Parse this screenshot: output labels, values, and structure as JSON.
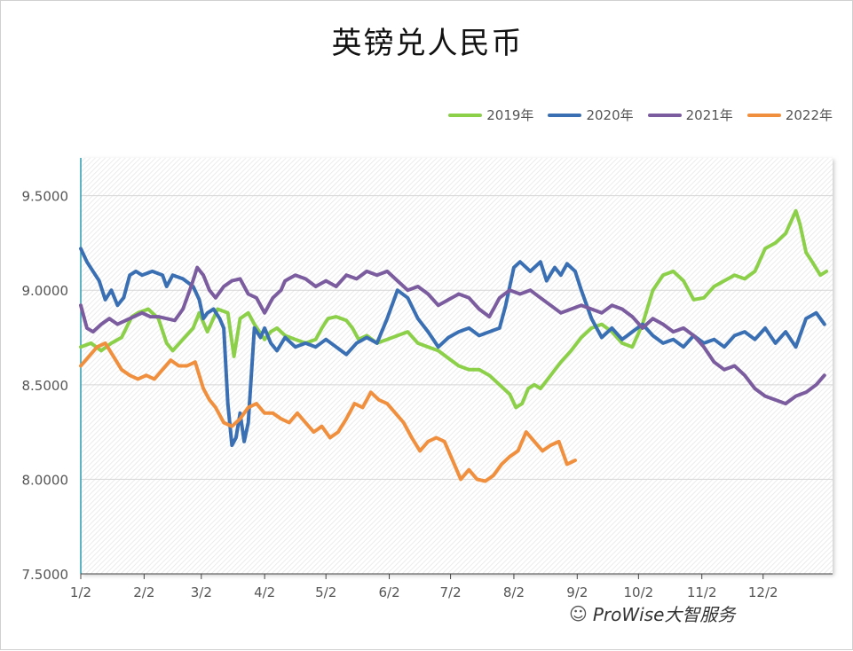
{
  "title": "英镑兑人民币",
  "watermark": {
    "text": "ProWise大智服务",
    "icon": "wechat-icon"
  },
  "chart_data": {
    "type": "line",
    "title": "英镑兑人民币",
    "xlabel": "",
    "ylabel": "",
    "ylim": [
      7.5,
      9.7
    ],
    "yticks": [
      "9.5000",
      "9.0000",
      "8.5000",
      "8.0000",
      "7.5000"
    ],
    "ytick_values": [
      9.5,
      9.0,
      8.5,
      8.0,
      7.5
    ],
    "xticks": [
      "1/2",
      "2/2",
      "3/2",
      "4/2",
      "5/2",
      "6/2",
      "7/2",
      "8/2",
      "9/2",
      "10/2",
      "11/2",
      "12/2"
    ],
    "xtick_days": [
      0,
      31,
      59,
      90,
      120,
      151,
      181,
      212,
      243,
      273,
      304,
      334
    ],
    "xlim": [
      0,
      368
    ],
    "grid": true,
    "legend_position": "top-right",
    "series": [
      {
        "name": "2019年",
        "color": "#8cd04a",
        "x": [
          0,
          5,
          10,
          15,
          20,
          25,
          28,
          33,
          38,
          42,
          45,
          50,
          55,
          58,
          62,
          67,
          72,
          75,
          78,
          82,
          85,
          90,
          93,
          96,
          100,
          105,
          110,
          115,
          118,
          121,
          125,
          130,
          133,
          136,
          140,
          145,
          150,
          155,
          160,
          165,
          170,
          175,
          180,
          185,
          190,
          195,
          200,
          205,
          210,
          213,
          216,
          219,
          222,
          225,
          230,
          235,
          240,
          245,
          250,
          255,
          260,
          265,
          270,
          275,
          280,
          285,
          290,
          295,
          300,
          305,
          310,
          315,
          320,
          325,
          330,
          335,
          340,
          345,
          350,
          352,
          355,
          358,
          362,
          365
        ],
        "y": [
          8.7,
          8.72,
          8.68,
          8.72,
          8.75,
          8.86,
          8.88,
          8.9,
          8.85,
          8.72,
          8.68,
          8.74,
          8.8,
          8.88,
          8.78,
          8.9,
          8.88,
          8.65,
          8.85,
          8.88,
          8.82,
          8.74,
          8.78,
          8.8,
          8.76,
          8.74,
          8.72,
          8.74,
          8.8,
          8.85,
          8.86,
          8.84,
          8.8,
          8.74,
          8.76,
          8.72,
          8.74,
          8.76,
          8.78,
          8.72,
          8.7,
          8.68,
          8.64,
          8.6,
          8.58,
          8.58,
          8.55,
          8.5,
          8.45,
          8.38,
          8.4,
          8.48,
          8.5,
          8.48,
          8.55,
          8.62,
          8.68,
          8.75,
          8.8,
          8.82,
          8.78,
          8.72,
          8.7,
          8.82,
          9.0,
          9.08,
          9.1,
          9.05,
          8.95,
          8.96,
          9.02,
          9.05,
          9.08,
          9.06,
          9.1,
          9.22,
          9.25,
          9.3,
          9.42,
          9.35,
          9.2,
          9.15,
          9.08,
          9.1
        ]
      },
      {
        "name": "2020年",
        "color": "#3a70b3",
        "x": [
          0,
          3,
          6,
          9,
          12,
          15,
          18,
          21,
          24,
          27,
          30,
          35,
          40,
          42,
          45,
          50,
          55,
          58,
          60,
          62,
          65,
          68,
          70,
          72,
          74,
          76,
          78,
          80,
          82,
          85,
          88,
          90,
          93,
          96,
          100,
          105,
          110,
          115,
          120,
          125,
          130,
          135,
          140,
          145,
          150,
          155,
          160,
          165,
          170,
          175,
          180,
          185,
          190,
          195,
          200,
          205,
          208,
          212,
          215,
          220,
          225,
          228,
          232,
          235,
          238,
          242,
          245,
          250,
          255,
          260,
          265,
          270,
          275,
          280,
          285,
          290,
          295,
          300,
          305,
          310,
          315,
          320,
          325,
          330,
          335,
          340,
          345,
          350,
          355,
          360,
          364
        ],
        "y": [
          9.22,
          9.15,
          9.1,
          9.05,
          8.95,
          9.0,
          8.92,
          8.96,
          9.08,
          9.1,
          9.08,
          9.1,
          9.08,
          9.02,
          9.08,
          9.06,
          9.02,
          8.95,
          8.85,
          8.88,
          8.9,
          8.85,
          8.8,
          8.4,
          8.18,
          8.22,
          8.35,
          8.2,
          8.3,
          8.8,
          8.75,
          8.8,
          8.72,
          8.68,
          8.75,
          8.7,
          8.72,
          8.7,
          8.74,
          8.7,
          8.66,
          8.72,
          8.75,
          8.72,
          8.85,
          9.0,
          8.96,
          8.85,
          8.78,
          8.7,
          8.75,
          8.78,
          8.8,
          8.76,
          8.78,
          8.8,
          8.92,
          9.12,
          9.15,
          9.1,
          9.15,
          9.05,
          9.12,
          9.08,
          9.14,
          9.1,
          9.0,
          8.85,
          8.75,
          8.8,
          8.74,
          8.78,
          8.82,
          8.76,
          8.72,
          8.74,
          8.7,
          8.76,
          8.72,
          8.74,
          8.7,
          8.76,
          8.78,
          8.74,
          8.8,
          8.72,
          8.78,
          8.7,
          8.85,
          8.88,
          8.82
        ]
      },
      {
        "name": "2021年",
        "color": "#7b5c9e",
        "x": [
          0,
          3,
          6,
          10,
          14,
          18,
          22,
          26,
          30,
          34,
          38,
          42,
          46,
          50,
          54,
          57,
          60,
          63,
          66,
          70,
          74,
          78,
          82,
          86,
          90,
          94,
          98,
          100,
          105,
          110,
          115,
          120,
          125,
          130,
          135,
          140,
          145,
          150,
          155,
          160,
          165,
          170,
          175,
          180,
          185,
          190,
          195,
          200,
          205,
          210,
          215,
          220,
          225,
          230,
          235,
          240,
          245,
          250,
          255,
          260,
          265,
          270,
          275,
          280,
          285,
          290,
          295,
          300,
          305,
          310,
          315,
          320,
          325,
          330,
          335,
          340,
          345,
          350,
          355,
          360,
          364
        ],
        "y": [
          8.92,
          8.8,
          8.78,
          8.82,
          8.85,
          8.82,
          8.84,
          8.86,
          8.88,
          8.86,
          8.86,
          8.85,
          8.84,
          8.9,
          9.02,
          9.12,
          9.08,
          9.0,
          8.96,
          9.02,
          9.05,
          9.06,
          8.98,
          8.96,
          8.88,
          8.96,
          9.0,
          9.05,
          9.08,
          9.06,
          9.02,
          9.05,
          9.02,
          9.08,
          9.06,
          9.1,
          9.08,
          9.1,
          9.05,
          9.0,
          9.02,
          8.98,
          8.92,
          8.95,
          8.98,
          8.96,
          8.9,
          8.86,
          8.96,
          9.0,
          8.98,
          9.0,
          8.96,
          8.92,
          8.88,
          8.9,
          8.92,
          8.9,
          8.88,
          8.92,
          8.9,
          8.86,
          8.8,
          8.85,
          8.82,
          8.78,
          8.8,
          8.76,
          8.7,
          8.62,
          8.58,
          8.6,
          8.55,
          8.48,
          8.44,
          8.42,
          8.4,
          8.44,
          8.46,
          8.5,
          8.55
        ]
      },
      {
        "name": "2022年",
        "color": "#f0903e",
        "x": [
          0,
          4,
          8,
          12,
          16,
          20,
          24,
          28,
          32,
          36,
          40,
          44,
          48,
          52,
          56,
          60,
          63,
          66,
          70,
          74,
          78,
          82,
          86,
          90,
          94,
          98,
          102,
          106,
          110,
          114,
          118,
          122,
          126,
          130,
          134,
          138,
          142,
          146,
          150,
          154,
          158,
          162,
          166,
          170,
          174,
          178,
          182,
          186,
          190,
          194,
          198,
          202,
          206,
          210,
          214,
          218,
          222,
          226,
          230,
          234,
          238,
          242
        ],
        "y": [
          8.6,
          8.65,
          8.7,
          8.72,
          8.65,
          8.58,
          8.55,
          8.53,
          8.55,
          8.53,
          8.58,
          8.63,
          8.6,
          8.6,
          8.62,
          8.48,
          8.42,
          8.38,
          8.3,
          8.28,
          8.32,
          8.38,
          8.4,
          8.35,
          8.35,
          8.32,
          8.3,
          8.35,
          8.3,
          8.25,
          8.28,
          8.22,
          8.25,
          8.32,
          8.4,
          8.38,
          8.46,
          8.42,
          8.4,
          8.35,
          8.3,
          8.22,
          8.15,
          8.2,
          8.22,
          8.2,
          8.1,
          8.0,
          8.05,
          8.0,
          7.99,
          8.02,
          8.08,
          8.12,
          8.15,
          8.25,
          8.2,
          8.15,
          8.18,
          8.2,
          8.08,
          8.1
        ]
      }
    ]
  }
}
